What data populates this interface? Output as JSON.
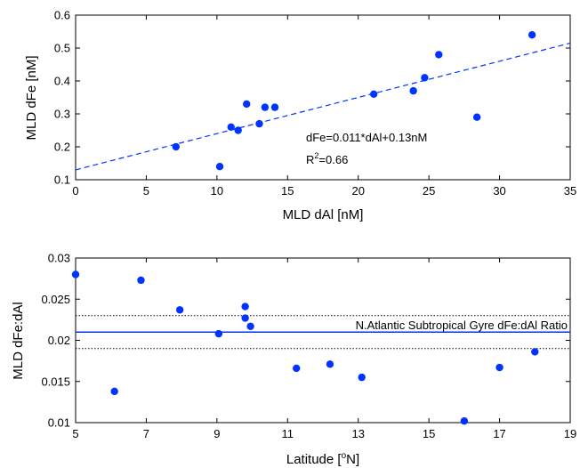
{
  "chart_data": [
    {
      "type": "scatter",
      "xlabel": "MLD dAl [nM]",
      "ylabel": "MLD dFe [nM]",
      "xlim": [
        0,
        35
      ],
      "ylim": [
        0.1,
        0.6
      ],
      "xticks": [
        0,
        5,
        10,
        15,
        20,
        25,
        30,
        35
      ],
      "yticks": [
        0.1,
        0.2,
        0.3,
        0.4,
        0.5,
        0.6
      ],
      "xtick_labels": [
        "0",
        "5",
        "10",
        "15",
        "20",
        "25",
        "30",
        "35"
      ],
      "ytick_labels": [
        "0.1",
        "0.2",
        "0.3",
        "0.4",
        "0.5",
        "0.6"
      ],
      "grid": false,
      "marker_color": "#0033ff",
      "points": [
        {
          "x": 7.1,
          "y": 0.2
        },
        {
          "x": 10.2,
          "y": 0.14
        },
        {
          "x": 11.0,
          "y": 0.26
        },
        {
          "x": 11.5,
          "y": 0.25
        },
        {
          "x": 12.1,
          "y": 0.33
        },
        {
          "x": 13.0,
          "y": 0.27
        },
        {
          "x": 13.4,
          "y": 0.32
        },
        {
          "x": 14.1,
          "y": 0.32
        },
        {
          "x": 21.1,
          "y": 0.36
        },
        {
          "x": 23.9,
          "y": 0.37
        },
        {
          "x": 24.7,
          "y": 0.41
        },
        {
          "x": 25.7,
          "y": 0.48
        },
        {
          "x": 28.4,
          "y": 0.29
        },
        {
          "x": 32.3,
          "y": 0.54
        }
      ],
      "fit": {
        "slope": 0.011,
        "intercept": 0.13,
        "style": "dashed",
        "color": "#0033ff"
      },
      "annotations": {
        "equation": "dFe=0.011*dAl+0.13nM",
        "r2_prefix": "R",
        "r2_sup": "2",
        "r2_suffix": "=0.66"
      }
    },
    {
      "type": "scatter",
      "xlabel_prefix": "Latitude [",
      "xlabel_sup": "o",
      "xlabel_suffix": "N]",
      "ylabel": "MLD dFe:dAl",
      "xlim": [
        5,
        19
      ],
      "ylim": [
        0.01,
        0.03
      ],
      "xticks": [
        5,
        7,
        9,
        11,
        13,
        15,
        17,
        19
      ],
      "yticks": [
        0.01,
        0.015,
        0.02,
        0.025,
        0.03
      ],
      "xtick_labels": [
        "5",
        "7",
        "9",
        "11",
        "13",
        "15",
        "17",
        "19"
      ],
      "ytick_labels": [
        "0.01",
        "0.015",
        "0.02",
        "0.025",
        "0.03"
      ],
      "grid": false,
      "marker_color": "#0033ff",
      "points": [
        {
          "x": 5.0,
          "y": 0.028
        },
        {
          "x": 6.1,
          "y": 0.0138
        },
        {
          "x": 6.85,
          "y": 0.0273
        },
        {
          "x": 7.95,
          "y": 0.0237
        },
        {
          "x": 9.05,
          "y": 0.0208
        },
        {
          "x": 9.8,
          "y": 0.0241
        },
        {
          "x": 9.8,
          "y": 0.0227
        },
        {
          "x": 9.95,
          "y": 0.0217
        },
        {
          "x": 11.25,
          "y": 0.0166
        },
        {
          "x": 12.2,
          "y": 0.0171
        },
        {
          "x": 13.1,
          "y": 0.0155
        },
        {
          "x": 16.0,
          "y": 0.0102
        },
        {
          "x": 17.0,
          "y": 0.0167
        },
        {
          "x": 18.0,
          "y": 0.0186
        }
      ],
      "reference": {
        "value": 0.021,
        "upper": 0.023,
        "lower": 0.019,
        "color": "#0033ff"
      },
      "annotations": {
        "reference_label": "N.Atlantic Subtropical Gyre dFe:dAl Ratio"
      }
    }
  ]
}
